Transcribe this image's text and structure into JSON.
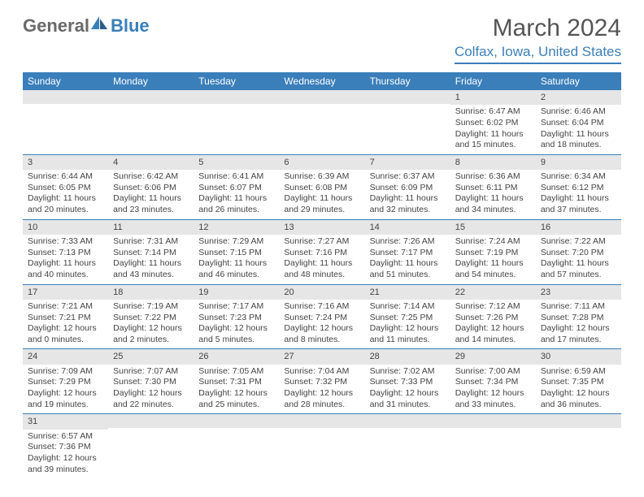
{
  "logo": {
    "part1": "General",
    "part2": "Blue"
  },
  "header": {
    "month_title": "March 2024",
    "location": "Colfax, Iowa, United States"
  },
  "colors": {
    "accent": "#3a7fba",
    "header_bg": "#3a7fba",
    "header_text": "#ffffff",
    "daybar_bg": "#e6e6e6",
    "text": "#444444",
    "logo_gray": "#6a6a6a"
  },
  "weekdays": [
    "Sunday",
    "Monday",
    "Tuesday",
    "Wednesday",
    "Thursday",
    "Friday",
    "Saturday"
  ],
  "weeks": [
    [
      null,
      null,
      null,
      null,
      null,
      {
        "n": "1",
        "sr": "Sunrise: 6:47 AM",
        "ss": "Sunset: 6:02 PM",
        "d1": "Daylight: 11 hours",
        "d2": "and 15 minutes."
      },
      {
        "n": "2",
        "sr": "Sunrise: 6:46 AM",
        "ss": "Sunset: 6:04 PM",
        "d1": "Daylight: 11 hours",
        "d2": "and 18 minutes."
      }
    ],
    [
      {
        "n": "3",
        "sr": "Sunrise: 6:44 AM",
        "ss": "Sunset: 6:05 PM",
        "d1": "Daylight: 11 hours",
        "d2": "and 20 minutes."
      },
      {
        "n": "4",
        "sr": "Sunrise: 6:42 AM",
        "ss": "Sunset: 6:06 PM",
        "d1": "Daylight: 11 hours",
        "d2": "and 23 minutes."
      },
      {
        "n": "5",
        "sr": "Sunrise: 6:41 AM",
        "ss": "Sunset: 6:07 PM",
        "d1": "Daylight: 11 hours",
        "d2": "and 26 minutes."
      },
      {
        "n": "6",
        "sr": "Sunrise: 6:39 AM",
        "ss": "Sunset: 6:08 PM",
        "d1": "Daylight: 11 hours",
        "d2": "and 29 minutes."
      },
      {
        "n": "7",
        "sr": "Sunrise: 6:37 AM",
        "ss": "Sunset: 6:09 PM",
        "d1": "Daylight: 11 hours",
        "d2": "and 32 minutes."
      },
      {
        "n": "8",
        "sr": "Sunrise: 6:36 AM",
        "ss": "Sunset: 6:11 PM",
        "d1": "Daylight: 11 hours",
        "d2": "and 34 minutes."
      },
      {
        "n": "9",
        "sr": "Sunrise: 6:34 AM",
        "ss": "Sunset: 6:12 PM",
        "d1": "Daylight: 11 hours",
        "d2": "and 37 minutes."
      }
    ],
    [
      {
        "n": "10",
        "sr": "Sunrise: 7:33 AM",
        "ss": "Sunset: 7:13 PM",
        "d1": "Daylight: 11 hours",
        "d2": "and 40 minutes."
      },
      {
        "n": "11",
        "sr": "Sunrise: 7:31 AM",
        "ss": "Sunset: 7:14 PM",
        "d1": "Daylight: 11 hours",
        "d2": "and 43 minutes."
      },
      {
        "n": "12",
        "sr": "Sunrise: 7:29 AM",
        "ss": "Sunset: 7:15 PM",
        "d1": "Daylight: 11 hours",
        "d2": "and 46 minutes."
      },
      {
        "n": "13",
        "sr": "Sunrise: 7:27 AM",
        "ss": "Sunset: 7:16 PM",
        "d1": "Daylight: 11 hours",
        "d2": "and 48 minutes."
      },
      {
        "n": "14",
        "sr": "Sunrise: 7:26 AM",
        "ss": "Sunset: 7:17 PM",
        "d1": "Daylight: 11 hours",
        "d2": "and 51 minutes."
      },
      {
        "n": "15",
        "sr": "Sunrise: 7:24 AM",
        "ss": "Sunset: 7:19 PM",
        "d1": "Daylight: 11 hours",
        "d2": "and 54 minutes."
      },
      {
        "n": "16",
        "sr": "Sunrise: 7:22 AM",
        "ss": "Sunset: 7:20 PM",
        "d1": "Daylight: 11 hours",
        "d2": "and 57 minutes."
      }
    ],
    [
      {
        "n": "17",
        "sr": "Sunrise: 7:21 AM",
        "ss": "Sunset: 7:21 PM",
        "d1": "Daylight: 12 hours",
        "d2": "and 0 minutes."
      },
      {
        "n": "18",
        "sr": "Sunrise: 7:19 AM",
        "ss": "Sunset: 7:22 PM",
        "d1": "Daylight: 12 hours",
        "d2": "and 2 minutes."
      },
      {
        "n": "19",
        "sr": "Sunrise: 7:17 AM",
        "ss": "Sunset: 7:23 PM",
        "d1": "Daylight: 12 hours",
        "d2": "and 5 minutes."
      },
      {
        "n": "20",
        "sr": "Sunrise: 7:16 AM",
        "ss": "Sunset: 7:24 PM",
        "d1": "Daylight: 12 hours",
        "d2": "and 8 minutes."
      },
      {
        "n": "21",
        "sr": "Sunrise: 7:14 AM",
        "ss": "Sunset: 7:25 PM",
        "d1": "Daylight: 12 hours",
        "d2": "and 11 minutes."
      },
      {
        "n": "22",
        "sr": "Sunrise: 7:12 AM",
        "ss": "Sunset: 7:26 PM",
        "d1": "Daylight: 12 hours",
        "d2": "and 14 minutes."
      },
      {
        "n": "23",
        "sr": "Sunrise: 7:11 AM",
        "ss": "Sunset: 7:28 PM",
        "d1": "Daylight: 12 hours",
        "d2": "and 17 minutes."
      }
    ],
    [
      {
        "n": "24",
        "sr": "Sunrise: 7:09 AM",
        "ss": "Sunset: 7:29 PM",
        "d1": "Daylight: 12 hours",
        "d2": "and 19 minutes."
      },
      {
        "n": "25",
        "sr": "Sunrise: 7:07 AM",
        "ss": "Sunset: 7:30 PM",
        "d1": "Daylight: 12 hours",
        "d2": "and 22 minutes."
      },
      {
        "n": "26",
        "sr": "Sunrise: 7:05 AM",
        "ss": "Sunset: 7:31 PM",
        "d1": "Daylight: 12 hours",
        "d2": "and 25 minutes."
      },
      {
        "n": "27",
        "sr": "Sunrise: 7:04 AM",
        "ss": "Sunset: 7:32 PM",
        "d1": "Daylight: 12 hours",
        "d2": "and 28 minutes."
      },
      {
        "n": "28",
        "sr": "Sunrise: 7:02 AM",
        "ss": "Sunset: 7:33 PM",
        "d1": "Daylight: 12 hours",
        "d2": "and 31 minutes."
      },
      {
        "n": "29",
        "sr": "Sunrise: 7:00 AM",
        "ss": "Sunset: 7:34 PM",
        "d1": "Daylight: 12 hours",
        "d2": "and 33 minutes."
      },
      {
        "n": "30",
        "sr": "Sunrise: 6:59 AM",
        "ss": "Sunset: 7:35 PM",
        "d1": "Daylight: 12 hours",
        "d2": "and 36 minutes."
      }
    ],
    [
      {
        "n": "31",
        "sr": "Sunrise: 6:57 AM",
        "ss": "Sunset: 7:36 PM",
        "d1": "Daylight: 12 hours",
        "d2": "and 39 minutes."
      },
      null,
      null,
      null,
      null,
      null,
      null
    ]
  ]
}
